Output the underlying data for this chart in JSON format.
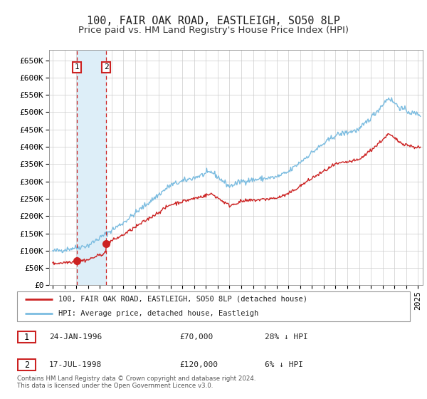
{
  "title": "100, FAIR OAK ROAD, EASTLEIGH, SO50 8LP",
  "subtitle": "Price paid vs. HM Land Registry's House Price Index (HPI)",
  "ylim": [
    0,
    680000
  ],
  "xlim_start": 1993.7,
  "xlim_end": 2025.4,
  "sale1_date": 1996.07,
  "sale1_price": 70000,
  "sale2_date": 1998.54,
  "sale2_price": 120000,
  "legend_line1": "100, FAIR OAK ROAD, EASTLEIGH, SO50 8LP (detached house)",
  "legend_line2": "HPI: Average price, detached house, Eastleigh",
  "table_row1": [
    "1",
    "24-JAN-1996",
    "£70,000",
    "28% ↓ HPI"
  ],
  "table_row2": [
    "2",
    "17-JUL-1998",
    "£120,000",
    "6% ↓ HPI"
  ],
  "footnote": "Contains HM Land Registry data © Crown copyright and database right 2024.\nThis data is licensed under the Open Government Licence v3.0.",
  "hpi_color": "#7bbce0",
  "price_color": "#cc2222",
  "sale_marker_color": "#cc2222",
  "shaded_region_color": "#ddeef8",
  "background_color": "#ffffff",
  "grid_color": "#cccccc",
  "title_fontsize": 11,
  "subtitle_fontsize": 9.5,
  "tick_fontsize": 8,
  "label_box_color": "#cc2222"
}
